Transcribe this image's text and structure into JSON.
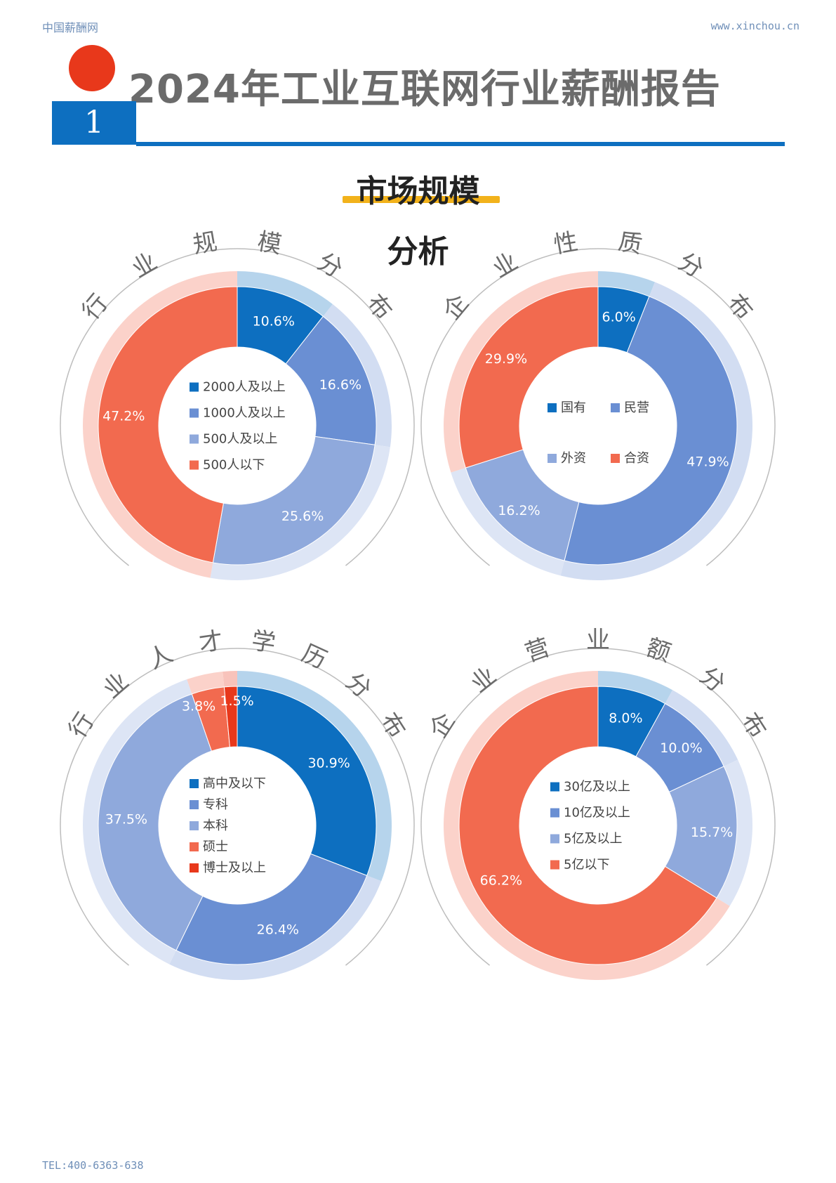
{
  "header": {
    "site": "中国薪酬网",
    "url": "www.xinchou.cn"
  },
  "title": "2024年工业互联网行业薪酬报告",
  "section_number": "1",
  "subtitle_line1": "市场规模",
  "subtitle_line2": "分析",
  "footer": "TEL:400-6363-638",
  "colors": {
    "accent_blue": "#0d6fc0",
    "red_dot": "#e8381b",
    "underline": "#f2b21b"
  },
  "chart_data": [
    {
      "type": "pie",
      "title": "行业规模分布",
      "categories": [
        "2000人及以上",
        "1000人及以上",
        "500人及以上",
        "500人以下"
      ],
      "values": [
        10.6,
        16.6,
        25.6,
        47.2
      ],
      "labels": [
        "10.6%",
        "16.6%",
        "25.6%",
        "47.2%"
      ],
      "colors": [
        "#0d6fc0",
        "#6a8fd3",
        "#8fa9dc",
        "#f26a4f"
      ],
      "legend": "center",
      "legend_layout": "column"
    },
    {
      "type": "pie",
      "title": "企业性质分布",
      "categories": [
        "国有",
        "民营",
        "外资",
        "合资"
      ],
      "values": [
        6.0,
        47.9,
        16.2,
        29.9
      ],
      "labels": [
        "6.0%",
        "47.9%",
        "16.2%",
        "29.9%"
      ],
      "colors": [
        "#0d6fc0",
        "#6a8fd3",
        "#8fa9dc",
        "#f26a4f"
      ],
      "legend": "center",
      "legend_layout": "grid"
    },
    {
      "type": "pie",
      "title": "行业人才学历分布",
      "categories": [
        "高中及以下",
        "专科",
        "本科",
        "硕士",
        "博士及以上"
      ],
      "values": [
        30.9,
        26.4,
        37.5,
        3.8,
        1.5
      ],
      "labels": [
        "30.9%",
        "26.4%",
        "37.5%",
        "3.8%",
        "1.5%"
      ],
      "colors": [
        "#0d6fc0",
        "#6a8fd3",
        "#8fa9dc",
        "#f26a4f",
        "#e8381b"
      ],
      "legend": "center",
      "legend_layout": "column"
    },
    {
      "type": "pie",
      "title": "企业营业额分布",
      "categories": [
        "30亿及以上",
        "10亿及以上",
        "5亿及以上",
        "5亿以下"
      ],
      "values": [
        8.0,
        10.0,
        15.7,
        66.2
      ],
      "labels": [
        "8.0%",
        "10.0%",
        "15.7%",
        "66.2%"
      ],
      "colors": [
        "#0d6fc0",
        "#6a8fd3",
        "#8fa9dc",
        "#f26a4f"
      ],
      "legend": "center",
      "legend_layout": "column"
    }
  ]
}
